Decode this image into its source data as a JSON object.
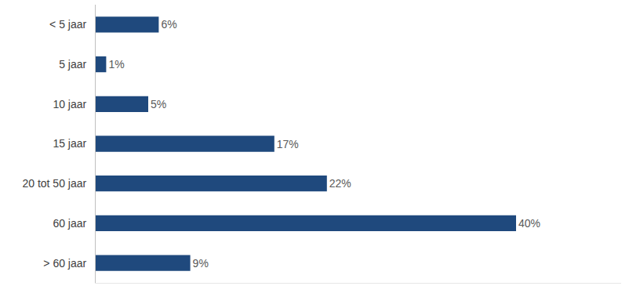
{
  "chart_data": {
    "type": "bar",
    "orientation": "horizontal",
    "categories": [
      "< 5 jaar",
      "5 jaar",
      "10 jaar",
      "15 jaar",
      "20 tot 50 jaar",
      "60 jaar",
      "> 60 jaar"
    ],
    "values": [
      6,
      1,
      5,
      17,
      22,
      40,
      9
    ],
    "value_labels": [
      "6%",
      "1%",
      "5%",
      "17%",
      "22%",
      "40%",
      "9%"
    ],
    "color": "#1f497d",
    "xlim": [
      0,
      50
    ],
    "data_labels": true,
    "tick_labels": "y",
    "grid": false
  }
}
